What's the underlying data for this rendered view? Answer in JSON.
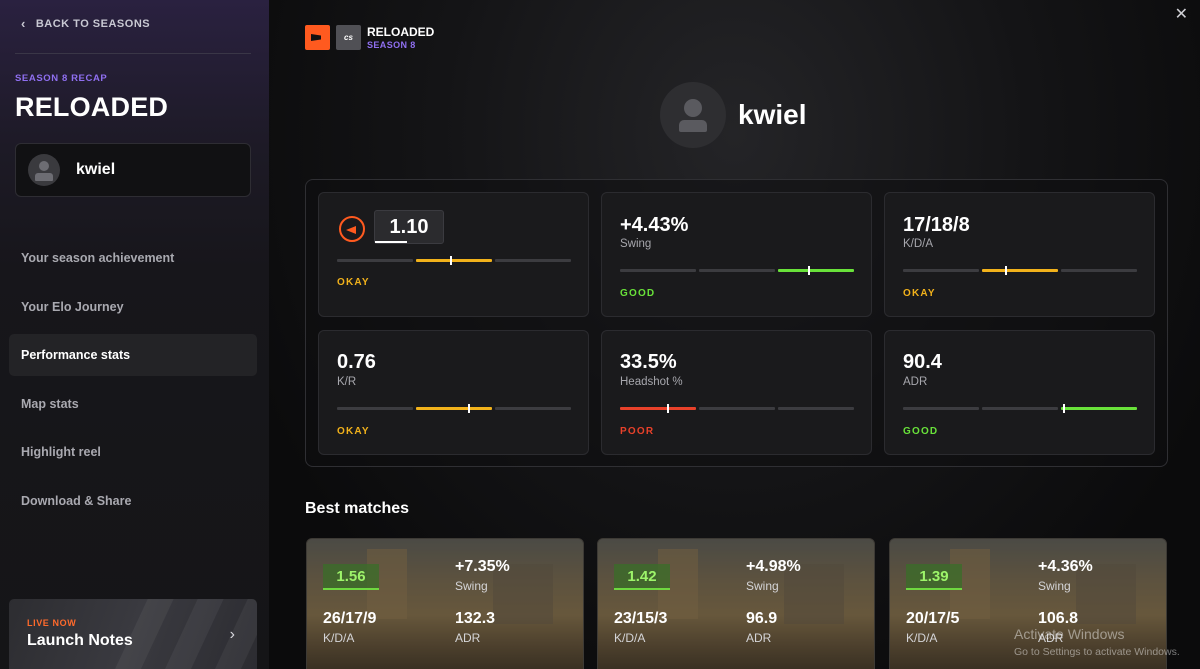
{
  "sidebar": {
    "back_label": "BACK TO SEASONS",
    "recap_label": "SEASON 8 RECAP",
    "title": "RELOADED",
    "username": "kwiel",
    "nav": [
      {
        "label": "Your season achievement",
        "active": false
      },
      {
        "label": "Your Elo Journey",
        "active": false
      },
      {
        "label": "Performance stats",
        "active": true
      },
      {
        "label": "Map stats",
        "active": false
      },
      {
        "label": "Highlight reel",
        "active": false
      },
      {
        "label": "Download & Share",
        "active": false
      }
    ],
    "live": {
      "label": "LIVE NOW",
      "title": "Launch Notes"
    }
  },
  "header": {
    "cs_logo_text": "cs",
    "title": "RELOADED",
    "subtitle": "SEASON 8",
    "username": "kwiel"
  },
  "stats": [
    {
      "value": "1.10",
      "label": "",
      "rating": "OKAY",
      "rating_color": "#f2b21b",
      "active_segment": 1,
      "marker": 0.45
    },
    {
      "value": "+4.43%",
      "label": "Swing",
      "rating": "GOOD",
      "rating_color": "#69e23a",
      "active_segment": 2,
      "marker": 0.4
    },
    {
      "value": "17/18/8",
      "label": "K/D/A",
      "rating": "OKAY",
      "rating_color": "#f2b21b",
      "active_segment": 1,
      "marker": 0.3
    },
    {
      "value": "0.76",
      "label": "K/R",
      "rating": "OKAY",
      "rating_color": "#f2b21b",
      "active_segment": 1,
      "marker": 0.68
    },
    {
      "value": "33.5%",
      "label": "Headshot %",
      "rating": "POOR",
      "rating_color": "#e8412a",
      "active_segment": 0,
      "marker": 0.62
    },
    {
      "value": "90.4",
      "label": "ADR",
      "rating": "GOOD",
      "rating_color": "#69e23a",
      "active_segment": 2,
      "marker": 0.02
    }
  ],
  "best_matches": {
    "title": "Best matches",
    "items": [
      {
        "rating": "1.56",
        "swing": "+7.35%",
        "swing_label": "Swing",
        "kda": "26/17/9",
        "kda_label": "K/D/A",
        "adr": "132.3",
        "adr_label": "ADR"
      },
      {
        "rating": "1.42",
        "swing": "+4.98%",
        "swing_label": "Swing",
        "kda": "23/15/3",
        "kda_label": "K/D/A",
        "adr": "96.9",
        "adr_label": "ADR"
      },
      {
        "rating": "1.39",
        "swing": "+4.36%",
        "swing_label": "Swing",
        "kda": "20/17/5",
        "kda_label": "K/D/A",
        "adr": "106.8",
        "adr_label": "ADR"
      }
    ]
  },
  "watermark": {
    "line1": "Activate Windows",
    "line2": "Go to Settings to activate Windows."
  },
  "colors": {
    "accent_purple": "#8f6ff0",
    "brand_orange": "#ff5a1f",
    "good": "#69e23a",
    "okay": "#f2b21b",
    "poor": "#e8412a"
  }
}
